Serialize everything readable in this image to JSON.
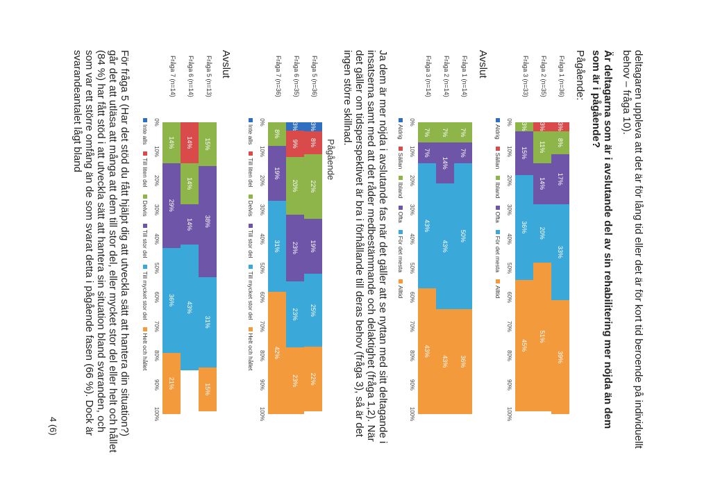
{
  "intro": "deltagaren upplevа att det är för lång tid eller det är för kort tid beroende på individuellt behov – fråga 10).",
  "heading": "Är deltagarna som är i avslutande del av sin rehabilitering mer nöjda än dem som är i pågående?",
  "sub_pagaende": "Pågående:",
  "sub_avslut": "Avslut",
  "middle_paragraph": "Ja dem är mer nöjda i avslutande fas när det gäller att se nyttan med sitt deltagande i insatserna samt med att det råder medbestämmande och delaktighet (fråga 1,2). När det gäller om tidsperspektivet är bra i förhållande till deras behov (fråga 3), så är det ingen större skillnad.",
  "chart2_title_pagaende": "Pågående",
  "chart2_title_avslut": "Avslut",
  "bottom_paragraph": "För fråga 5 (Har det stöd du fått hjälpt dig att utveckla sätt att hantera din situation?) går det att utläsa att många att dem till stor del, eller mycket stor del eller helt och hållet (84 %) har fått stöd i att utveckla sätt att hantera sin situation bland svaranden, och som var ett större omfång än de som svarat detta i pågående fasen (66 %). Dock är svarandeantalet lågt bland",
  "page_number": "4 (6)",
  "axis_ticks": [
    "0%",
    "10%",
    "20%",
    "30%",
    "40%",
    "50%",
    "60%",
    "70%",
    "80%",
    "90%",
    "100%"
  ],
  "legend_set1": {
    "labels": [
      "Aldrig",
      "Sällan",
      "Ibland",
      "Ofta",
      "För det mesta",
      "Alltid"
    ],
    "colors": [
      "#2f6fbf",
      "#d94b4b",
      "#8db54a",
      "#6e55a8",
      "#3aa8d8",
      "#f29a3c"
    ]
  },
  "legend_set2": {
    "labels": [
      "Inte alls",
      "Till liten del",
      "Delvis",
      "Till stor del",
      "Till mycket stor del",
      "Helt och hållet"
    ],
    "colors": [
      "#2f6fbf",
      "#d94b4b",
      "#8db54a",
      "#6e55a8",
      "#3aa8d8",
      "#f29a3c"
    ]
  },
  "chart_data": [
    {
      "type": "bar",
      "title": "Pågående:",
      "categories": [
        "Fråga 1 (n=36)",
        "Fråga 2 (n=35)",
        "Fråga 3 (n=33)"
      ],
      "series": [
        {
          "name": "Aldrig",
          "values": [
            0,
            0,
            0
          ]
        },
        {
          "name": "Sällan",
          "values": [
            3,
            3,
            0
          ]
        },
        {
          "name": "Ibland",
          "values": [
            8,
            11,
            3
          ]
        },
        {
          "name": "Ofta",
          "values": [
            17,
            14,
            15
          ]
        },
        {
          "name": "För det mesta",
          "values": [
            33,
            20,
            36
          ]
        },
        {
          "name": "Alltid",
          "values": [
            39,
            51,
            45
          ]
        }
      ],
      "labels": [
        [
          "",
          "3%",
          "8%",
          "17%",
          "33%",
          "39%"
        ],
        [
          "",
          "3%",
          "11%",
          "14%",
          "20%",
          "51%"
        ],
        [
          "",
          "",
          "3%",
          "15%",
          "36%",
          "45%"
        ]
      ],
      "ylim": [
        0,
        100
      ]
    },
    {
      "type": "bar",
      "title": "Avslut",
      "categories": [
        "Fråga 1 (n=14)",
        "Fråga 2 (n=14)",
        "Fråga 3 (n=14)"
      ],
      "series": [
        {
          "name": "Aldrig",
          "values": [
            0,
            0,
            0
          ]
        },
        {
          "name": "Sällan",
          "values": [
            0,
            0,
            0
          ]
        },
        {
          "name": "Ibland",
          "values": [
            7,
            7,
            7
          ]
        },
        {
          "name": "Ofta",
          "values": [
            7,
            14,
            7
          ]
        },
        {
          "name": "För det mesta",
          "values": [
            50,
            43,
            43
          ]
        },
        {
          "name": "Alltid",
          "values": [
            36,
            36,
            43
          ]
        }
      ],
      "labels": [
        [
          "",
          "",
          "7%",
          "7%",
          "50%",
          "36%"
        ],
        [
          "",
          "",
          "7%",
          "14%",
          "43%",
          "43%"
        ],
        [
          "",
          "",
          "7%",
          "7%",
          "43%",
          "43%"
        ]
      ],
      "ylim": [
        0,
        100
      ]
    },
    {
      "type": "bar",
      "title": "Pågående",
      "categories": [
        "Fråga 5 (n=36)",
        "Fråga 6 (n=35)",
        "Fråga 7 (n=36)"
      ],
      "series": [
        {
          "name": "Inte alls",
          "values": [
            3,
            3,
            0
          ]
        },
        {
          "name": "Till liten del",
          "values": [
            8,
            9,
            0
          ]
        },
        {
          "name": "Delvis",
          "values": [
            22,
            20,
            8
          ]
        },
        {
          "name": "Till stor del",
          "values": [
            19,
            23,
            19
          ]
        },
        {
          "name": "Till mycket stor del",
          "values": [
            25,
            23,
            31
          ]
        },
        {
          "name": "Helt och hållet",
          "values": [
            22,
            23,
            42
          ]
        }
      ],
      "labels": [
        [
          "3%",
          "8%",
          "22%",
          "19%",
          "25%",
          "22%"
        ],
        [
          "3%",
          "9%",
          "20%",
          "23%",
          "23%",
          "23%"
        ],
        [
          "",
          "",
          "8%",
          "19%",
          "31%",
          "42%"
        ]
      ],
      "ylim": [
        0,
        100
      ]
    },
    {
      "type": "bar",
      "title": "Avslut",
      "categories": [
        "Fråga 5 (n=13)",
        "Fråga 6 (n=14)",
        "Fråga 7 (n=14)"
      ],
      "series": [
        {
          "name": "Inte alls",
          "values": [
            0,
            0,
            0
          ]
        },
        {
          "name": "Till liten del",
          "values": [
            0,
            14,
            0
          ]
        },
        {
          "name": "Delvis",
          "values": [
            15,
            14,
            14
          ]
        },
        {
          "name": "Till stor del",
          "values": [
            38,
            14,
            29
          ]
        },
        {
          "name": "Till mycket stor del",
          "values": [
            31,
            43,
            36
          ]
        },
        {
          "name": "Helt och hållet",
          "values": [
            15,
            0,
            21
          ]
        }
      ],
      "labels": [
        [
          "",
          "",
          "15%",
          "38%",
          "31%",
          "15%"
        ],
        [
          "",
          "14%",
          "14%",
          "14%",
          "43%",
          "0"
        ],
        [
          "",
          "",
          "14%",
          "29%",
          "36%",
          "21%"
        ]
      ],
      "ylim": [
        0,
        100
      ]
    }
  ]
}
